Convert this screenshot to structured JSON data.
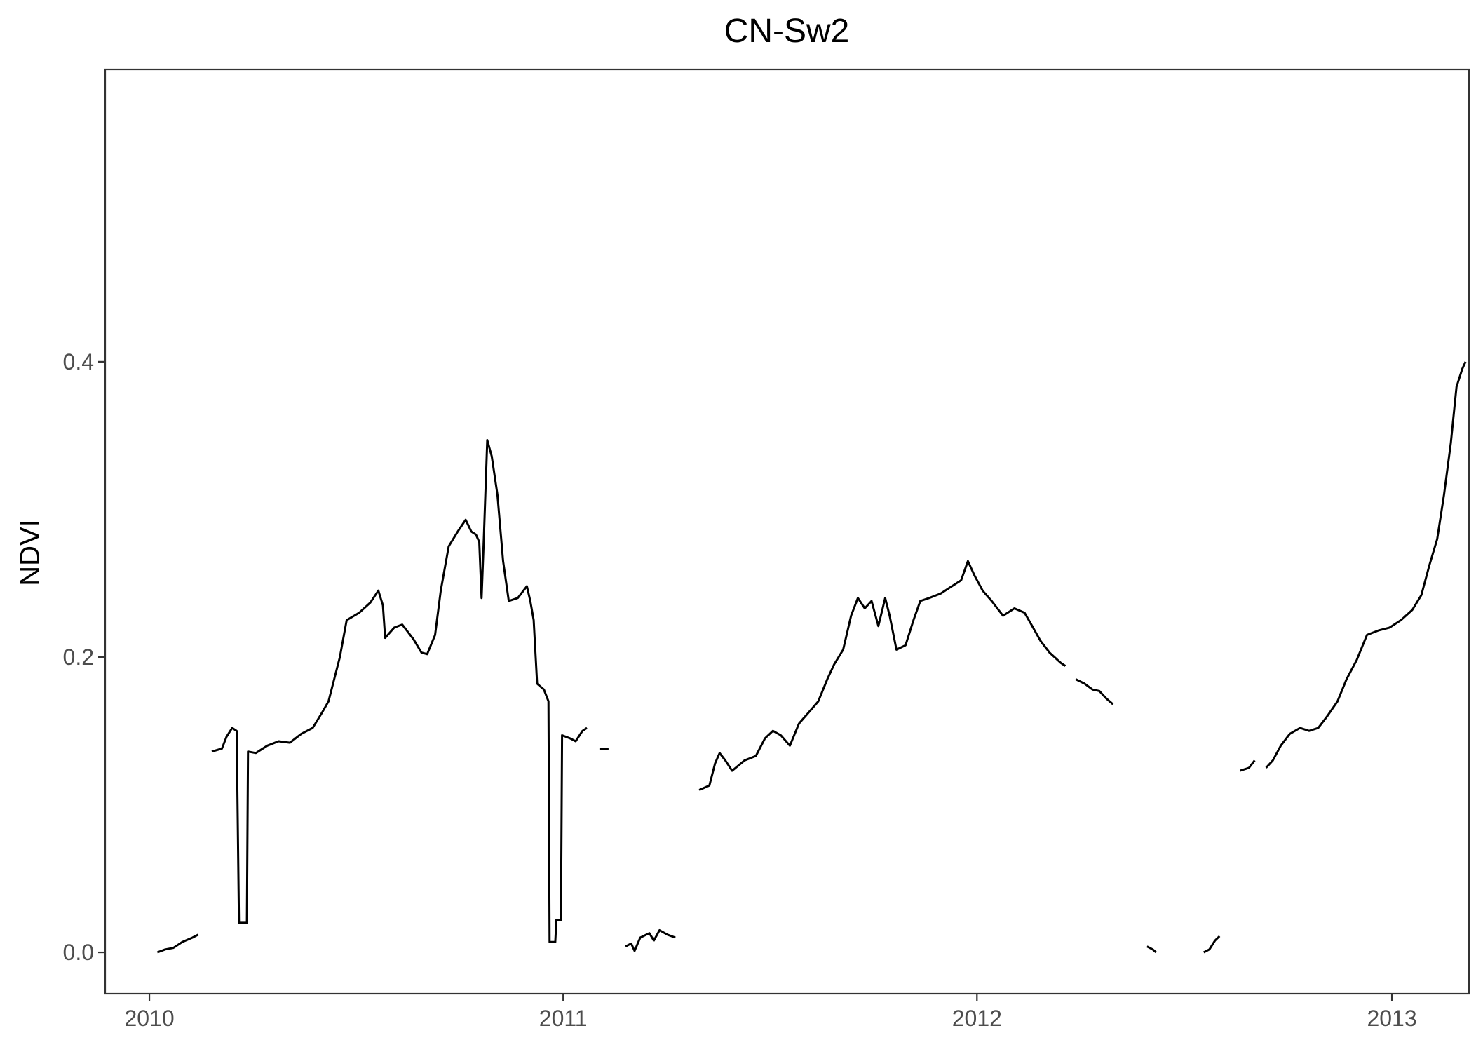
{
  "chart_data": {
    "type": "line",
    "title": "CN-Sw2",
    "xlabel": "",
    "ylabel": "NDVI",
    "x_type": "date",
    "xlim": [
      "2009-11-23",
      "2013-03-10"
    ],
    "ylim": [
      -0.028,
      0.598
    ],
    "x_ticks": [
      {
        "value": "2010-01-01",
        "label": "2010"
      },
      {
        "value": "2011-01-01",
        "label": "2011"
      },
      {
        "value": "2012-01-01",
        "label": "2012"
      },
      {
        "value": "2013-01-01",
        "label": "2013"
      }
    ],
    "y_ticks": [
      {
        "value": 0.0,
        "label": "0.0"
      },
      {
        "value": 0.2,
        "label": "0.2"
      },
      {
        "value": 0.4,
        "label": "0.4"
      }
    ],
    "grid": false,
    "legend": "none",
    "line_color": "#000000",
    "series": [
      {
        "segments": [
          [
            [
              "2010-01-08",
              0.0
            ],
            [
              "2010-01-15",
              0.002
            ],
            [
              "2010-01-22",
              0.003
            ],
            [
              "2010-01-30",
              0.007
            ],
            [
              "2010-02-08",
              0.01
            ],
            [
              "2010-02-13",
              0.012
            ]
          ],
          [
            [
              "2010-02-25",
              0.136
            ],
            [
              "2010-03-06",
              0.138
            ],
            [
              "2010-03-10",
              0.146
            ],
            [
              "2010-03-15",
              0.152
            ],
            [
              "2010-03-19",
              0.15
            ],
            [
              "2010-03-21",
              0.02
            ],
            [
              "2010-03-28",
              0.02
            ],
            [
              "2010-03-29",
              0.136
            ],
            [
              "2010-04-05",
              0.135
            ],
            [
              "2010-04-15",
              0.14
            ],
            [
              "2010-04-25",
              0.143
            ],
            [
              "2010-05-05",
              0.142
            ],
            [
              "2010-05-15",
              0.148
            ],
            [
              "2010-05-25",
              0.152
            ],
            [
              "2010-06-02",
              0.162
            ],
            [
              "2010-06-08",
              0.17
            ],
            [
              "2010-06-13",
              0.185
            ],
            [
              "2010-06-18",
              0.2
            ],
            [
              "2010-06-24",
              0.225
            ],
            [
              "2010-07-05",
              0.23
            ],
            [
              "2010-07-15",
              0.237
            ],
            [
              "2010-07-22",
              0.245
            ],
            [
              "2010-07-26",
              0.235
            ],
            [
              "2010-07-28",
              0.213
            ],
            [
              "2010-08-05",
              0.22
            ],
            [
              "2010-08-12",
              0.222
            ],
            [
              "2010-08-22",
              0.212
            ],
            [
              "2010-08-29",
              0.203
            ],
            [
              "2010-09-03",
              0.202
            ],
            [
              "2010-09-10",
              0.215
            ],
            [
              "2010-09-15",
              0.245
            ],
            [
              "2010-09-22",
              0.275
            ],
            [
              "2010-09-30",
              0.285
            ],
            [
              "2010-10-07",
              0.293
            ],
            [
              "2010-10-12",
              0.285
            ],
            [
              "2010-10-16",
              0.283
            ],
            [
              "2010-10-19",
              0.278
            ],
            [
              "2010-10-21",
              0.24
            ],
            [
              "2010-10-23",
              0.28
            ],
            [
              "2010-10-26",
              0.347
            ],
            [
              "2010-10-30",
              0.336
            ],
            [
              "2010-11-04",
              0.31
            ],
            [
              "2010-11-09",
              0.265
            ],
            [
              "2010-11-14",
              0.238
            ],
            [
              "2010-11-22",
              0.24
            ],
            [
              "2010-11-30",
              0.248
            ],
            [
              "2010-12-03",
              0.238
            ],
            [
              "2010-12-06",
              0.225
            ],
            [
              "2010-12-09",
              0.182
            ],
            [
              "2010-12-15",
              0.178
            ],
            [
              "2010-12-19",
              0.17
            ],
            [
              "2010-12-20",
              0.007
            ],
            [
              "2010-12-25",
              0.007
            ],
            [
              "2010-12-26",
              0.022
            ],
            [
              "2010-12-30",
              0.022
            ],
            [
              "2010-12-31",
              0.147
            ],
            [
              "2011-01-07",
              0.145
            ],
            [
              "2011-01-12",
              0.143
            ],
            [
              "2011-01-18",
              0.15
            ],
            [
              "2011-01-22",
              0.152
            ]
          ],
          [
            [
              "2011-02-02",
              0.138
            ],
            [
              "2011-02-10",
              0.138
            ]
          ],
          [
            [
              "2011-02-25",
              0.004
            ],
            [
              "2011-03-02",
              0.006
            ],
            [
              "2011-03-05",
              0.001
            ],
            [
              "2011-03-10",
              0.01
            ],
            [
              "2011-03-18",
              0.013
            ],
            [
              "2011-03-22",
              0.008
            ],
            [
              "2011-03-27",
              0.015
            ],
            [
              "2011-04-03",
              0.012
            ],
            [
              "2011-04-10",
              0.01
            ]
          ],
          [
            [
              "2011-05-01",
              0.11
            ],
            [
              "2011-05-10",
              0.113
            ],
            [
              "2011-05-15",
              0.128
            ],
            [
              "2011-05-19",
              0.135
            ],
            [
              "2011-05-24",
              0.13
            ],
            [
              "2011-05-30",
              0.123
            ],
            [
              "2011-06-10",
              0.13
            ],
            [
              "2011-06-20",
              0.133
            ],
            [
              "2011-06-28",
              0.145
            ],
            [
              "2011-07-05",
              0.15
            ],
            [
              "2011-07-12",
              0.147
            ],
            [
              "2011-07-20",
              0.14
            ],
            [
              "2011-07-28",
              0.155
            ],
            [
              "2011-08-05",
              0.162
            ],
            [
              "2011-08-14",
              0.17
            ],
            [
              "2011-08-22",
              0.185
            ],
            [
              "2011-08-28",
              0.195
            ],
            [
              "2011-09-05",
              0.205
            ],
            [
              "2011-09-12",
              0.228
            ],
            [
              "2011-09-18",
              0.24
            ],
            [
              "2011-09-24",
              0.233
            ],
            [
              "2011-09-30",
              0.238
            ],
            [
              "2011-10-06",
              0.221
            ],
            [
              "2011-10-12",
              0.24
            ],
            [
              "2011-10-16",
              0.228
            ],
            [
              "2011-10-22",
              0.205
            ],
            [
              "2011-10-30",
              0.208
            ],
            [
              "2011-11-06",
              0.225
            ],
            [
              "2011-11-12",
              0.238
            ],
            [
              "2011-11-20",
              0.24
            ],
            [
              "2011-11-30",
              0.243
            ],
            [
              "2011-12-10",
              0.248
            ],
            [
              "2011-12-18",
              0.252
            ],
            [
              "2011-12-24",
              0.265
            ],
            [
              "2011-12-30",
              0.255
            ],
            [
              "2012-01-06",
              0.245
            ],
            [
              "2012-01-14",
              0.238
            ],
            [
              "2012-01-24",
              0.228
            ],
            [
              "2012-02-03",
              0.233
            ],
            [
              "2012-02-12",
              0.23
            ],
            [
              "2012-02-18",
              0.222
            ],
            [
              "2012-02-26",
              0.211
            ],
            [
              "2012-03-05",
              0.203
            ],
            [
              "2012-03-15",
              0.196
            ],
            [
              "2012-03-19",
              0.194
            ]
          ],
          [
            [
              "2012-03-28",
              0.185
            ],
            [
              "2012-04-05",
              0.182
            ],
            [
              "2012-04-12",
              0.178
            ],
            [
              "2012-04-18",
              0.177
            ],
            [
              "2012-04-24",
              0.172
            ],
            [
              "2012-04-30",
              0.168
            ]
          ],
          [
            [
              "2012-05-30",
              0.004
            ],
            [
              "2012-06-04",
              0.002
            ],
            [
              "2012-06-07",
              0.0
            ]
          ],
          [
            [
              "2012-07-19",
              0.0
            ],
            [
              "2012-07-24",
              0.002
            ],
            [
              "2012-07-29",
              0.008
            ],
            [
              "2012-08-02",
              0.011
            ]
          ],
          [
            [
              "2012-08-20",
              0.123
            ],
            [
              "2012-08-28",
              0.125
            ],
            [
              "2012-09-02",
              0.13
            ]
          ],
          [
            [
              "2012-09-12",
              0.125
            ],
            [
              "2012-09-18",
              0.13
            ],
            [
              "2012-09-25",
              0.14
            ],
            [
              "2012-10-03",
              0.148
            ],
            [
              "2012-10-12",
              0.152
            ],
            [
              "2012-10-20",
              0.15
            ],
            [
              "2012-10-28",
              0.152
            ],
            [
              "2012-11-05",
              0.16
            ],
            [
              "2012-11-14",
              0.17
            ],
            [
              "2012-11-22",
              0.185
            ],
            [
              "2012-12-01",
              0.198
            ],
            [
              "2012-12-10",
              0.215
            ],
            [
              "2012-12-20",
              0.218
            ],
            [
              "2012-12-30",
              0.22
            ],
            [
              "2013-01-09",
              0.225
            ],
            [
              "2013-01-19",
              0.232
            ],
            [
              "2013-01-27",
              0.242
            ],
            [
              "2013-02-03",
              0.262
            ],
            [
              "2013-02-10",
              0.28
            ],
            [
              "2013-02-16",
              0.31
            ],
            [
              "2013-02-22",
              0.345
            ],
            [
              "2013-02-27",
              0.383
            ],
            [
              "2013-03-04",
              0.395
            ],
            [
              "2013-03-07",
              0.4
            ]
          ]
        ]
      }
    ]
  }
}
